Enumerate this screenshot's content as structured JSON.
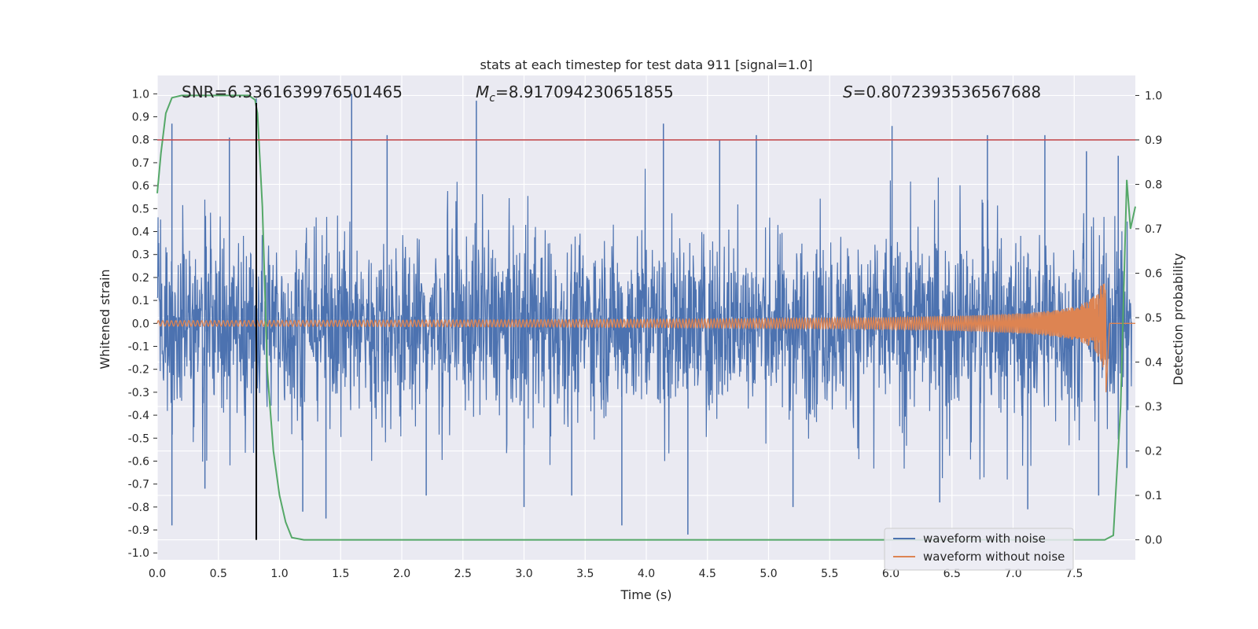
{
  "chart_data": {
    "type": "line",
    "title": "stats at each timestep for test data 911 [signal=1.0]",
    "xlabel": "Time (s)",
    "ylabel_left": "Whitened strain",
    "ylabel_right": "Detection probability",
    "xlim": [
      0.0,
      8.0
    ],
    "ylim_left": [
      -1.03,
      1.08
    ],
    "ylim_right": [
      -0.045,
      1.045
    ],
    "x_ticks": [
      "0.0",
      "0.5",
      "1.0",
      "1.5",
      "2.0",
      "2.5",
      "3.0",
      "3.5",
      "4.0",
      "4.5",
      "5.0",
      "5.5",
      "6.0",
      "6.5",
      "7.0",
      "7.5"
    ],
    "y_ticks_left": [
      "-1.0",
      "-0.9",
      "-0.8",
      "-0.7",
      "-0.6",
      "-0.5",
      "-0.4",
      "-0.3",
      "-0.2",
      "-0.1",
      "0.0",
      "0.1",
      "0.2",
      "0.3",
      "0.4",
      "0.5",
      "0.6",
      "0.7",
      "0.8",
      "0.9",
      "1.0"
    ],
    "y_ticks_right": [
      "0.0",
      "0.1",
      "0.2",
      "0.3",
      "0.4",
      "0.5",
      "0.6",
      "0.7",
      "0.8",
      "0.9",
      "1.0"
    ],
    "grid": true,
    "annotations": {
      "snr": "SNR=6.336163997650146 5",
      "snr_text": "SNR=6.3361639976501465",
      "mc_symbol": "M",
      "mc_sub": "c",
      "mc_value": "=8.917094230651855",
      "s_symbol": "S",
      "s_value": "=0.8072393536567688"
    },
    "threshold_right": 0.9,
    "vertical_marker_x": 0.81,
    "noise_envelope": {
      "x": [
        0.0,
        0.5,
        1.0,
        1.5,
        2.0,
        2.5,
        3.0,
        3.5,
        4.0,
        4.5,
        5.0,
        5.5,
        6.0,
        6.5,
        7.0,
        7.5,
        7.95
      ],
      "upper": [
        0.45,
        0.5,
        0.45,
        0.48,
        0.5,
        0.5,
        0.5,
        0.5,
        0.55,
        0.5,
        0.5,
        0.55,
        0.55,
        0.55,
        0.55,
        0.55,
        0.45
      ],
      "lower": [
        -0.45,
        -0.5,
        -0.5,
        -0.5,
        -0.5,
        -0.5,
        -0.5,
        -0.5,
        -0.5,
        -0.5,
        -0.5,
        -0.55,
        -0.55,
        -0.55,
        -0.55,
        -0.55,
        -0.5
      ],
      "spikes": [
        [
          0.12,
          0.87
        ],
        [
          0.12,
          -0.88
        ],
        [
          0.39,
          -0.72
        ],
        [
          0.59,
          0.81
        ],
        [
          0.81,
          0.98
        ],
        [
          0.81,
          -0.92
        ],
        [
          1.19,
          -0.82
        ],
        [
          1.38,
          -0.85
        ],
        [
          1.59,
          1.0
        ],
        [
          1.88,
          0.82
        ],
        [
          2.2,
          -0.75
        ],
        [
          2.61,
          0.97
        ],
        [
          3.0,
          -0.8
        ],
        [
          3.39,
          -0.75
        ],
        [
          3.8,
          -0.88
        ],
        [
          4.14,
          0.87
        ],
        [
          4.34,
          -0.92
        ],
        [
          4.6,
          0.8
        ],
        [
          4.9,
          0.82
        ],
        [
          5.2,
          -0.8
        ],
        [
          6.01,
          0.86
        ],
        [
          6.4,
          -0.78
        ],
        [
          6.79,
          0.82
        ],
        [
          7.12,
          -0.81
        ],
        [
          7.26,
          0.82
        ],
        [
          7.6,
          0.75
        ],
        [
          7.7,
          -0.75
        ],
        [
          7.86,
          0.73
        ],
        [
          7.93,
          -0.63
        ]
      ]
    },
    "series": [
      {
        "name": "waveform with noise",
        "color": "#4c72b0",
        "axis": "left",
        "description": "dense noise roughly within ±0.5 with spikes"
      },
      {
        "name": "waveform without noise",
        "color": "#dd8452",
        "axis": "left",
        "chirp": {
          "t_start": 0.0,
          "t_merge": 7.76,
          "amp_start": 0.012,
          "amp_peak": 0.2,
          "amp_min": -0.3,
          "f_start": 29
        }
      },
      {
        "name": "Detection probability",
        "color": "#55a868",
        "axis": "right",
        "x": [
          0.0,
          0.03,
          0.07,
          0.12,
          0.2,
          0.3,
          0.5,
          0.7,
          0.75,
          0.8,
          0.82,
          0.86,
          0.9,
          0.95,
          1.0,
          1.05,
          1.1,
          1.2,
          2.0,
          4.0,
          6.0,
          7.5,
          7.75,
          7.82,
          7.88,
          7.93,
          7.96,
          8.0
        ],
        "y": [
          0.78,
          0.87,
          0.96,
          0.995,
          1.0,
          1.0,
          1.0,
          1.0,
          1.0,
          0.99,
          0.96,
          0.75,
          0.38,
          0.2,
          0.1,
          0.04,
          0.005,
          0.0,
          0.0,
          0.0,
          0.0,
          0.0,
          0.0,
          0.01,
          0.3,
          0.81,
          0.7,
          0.75
        ]
      }
    ],
    "legend": {
      "placement": "lower-right",
      "entries": [
        {
          "label": "waveform with noise",
          "color": "#4c72b0"
        },
        {
          "label": "waveform without noise",
          "color": "#dd8452"
        }
      ]
    },
    "colors": {
      "plot_background": "#eaeaf2",
      "grid": "#ffffff",
      "threshold_line": "#c44e52",
      "marker_line": "#000000"
    }
  }
}
